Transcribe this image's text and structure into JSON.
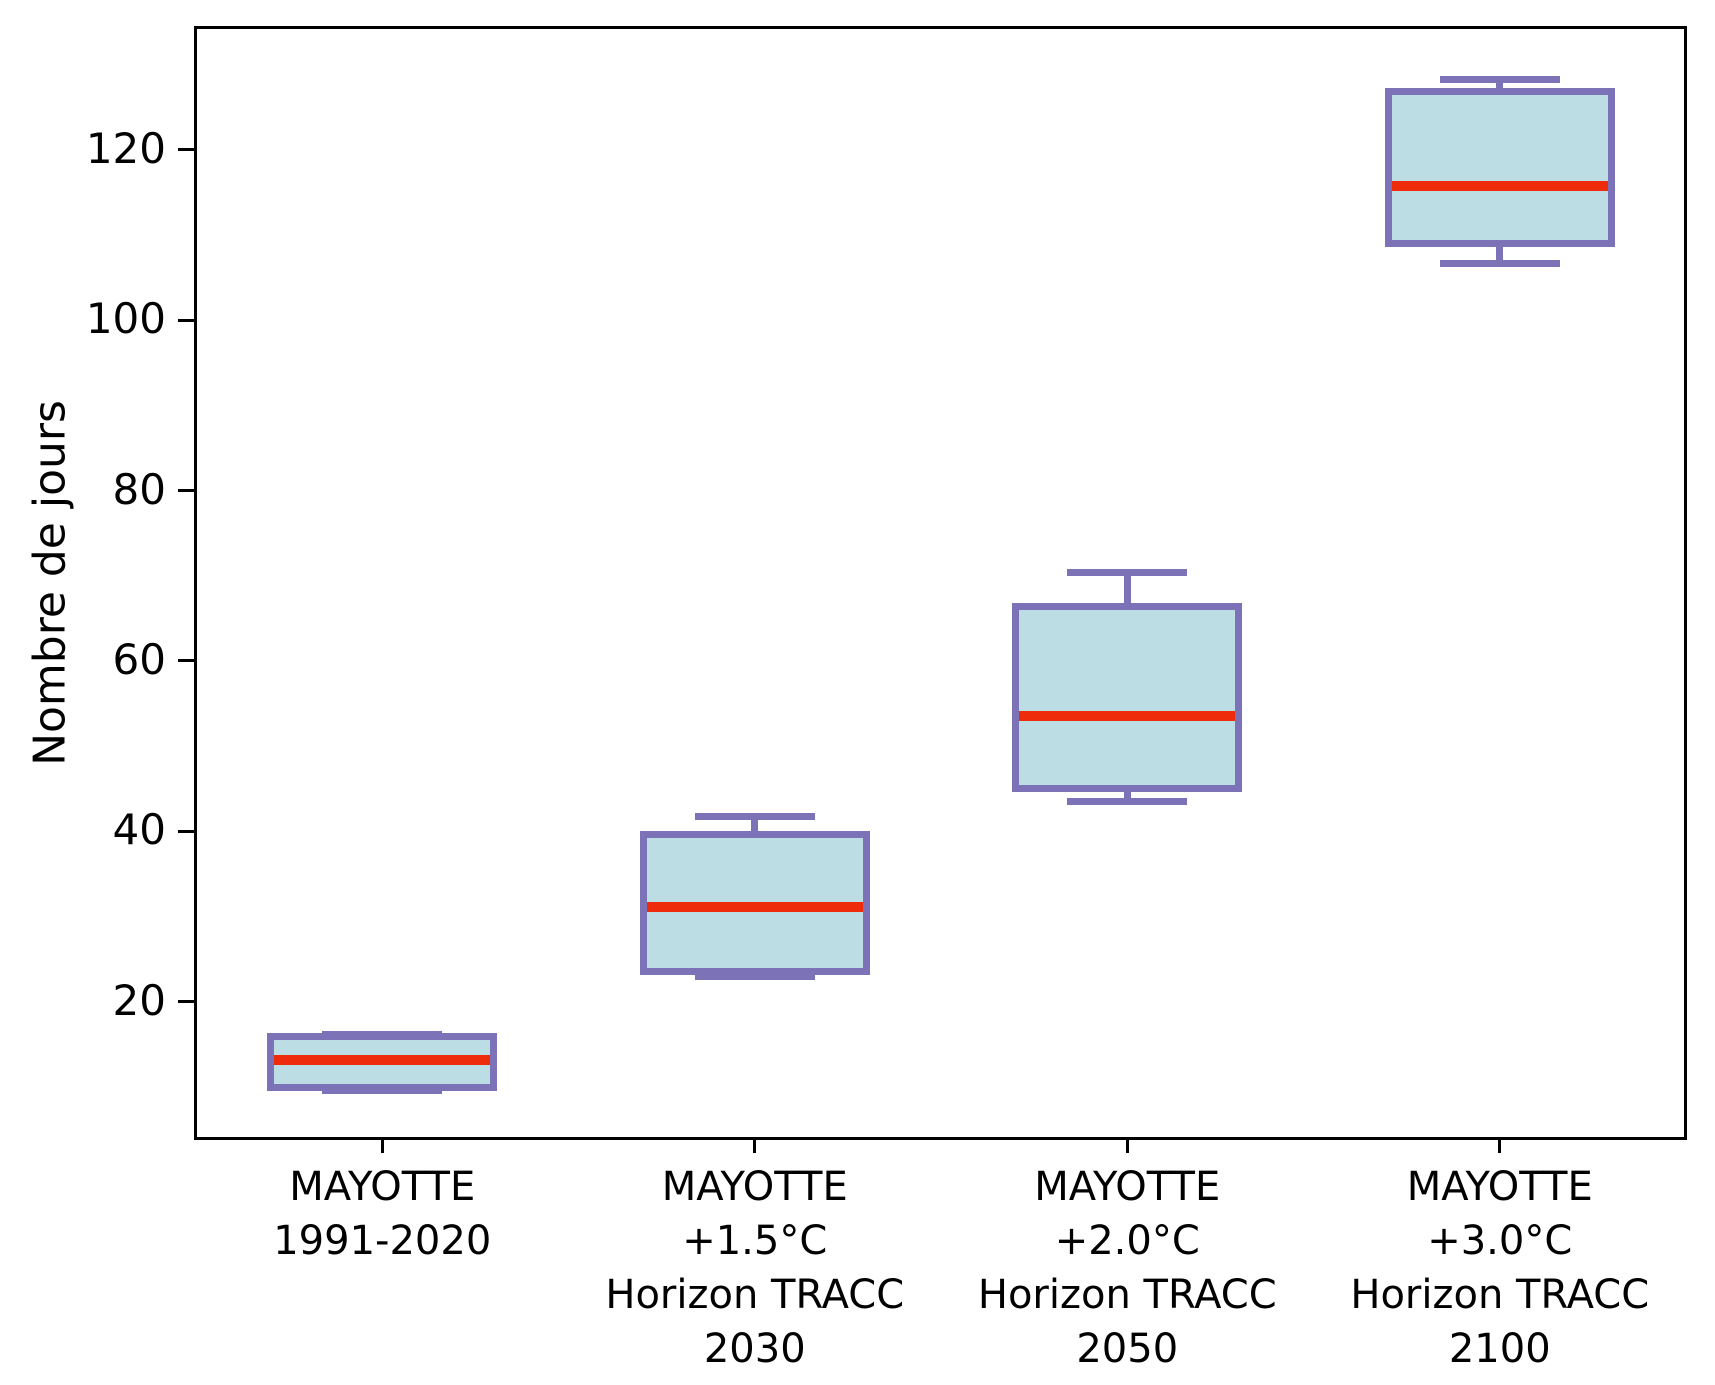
{
  "chart_data": {
    "type": "box",
    "title": "",
    "xlabel": "",
    "ylabel": "Nombre de jours",
    "ylim": [
      4.0,
      134.3
    ],
    "yticks": [
      20,
      40,
      60,
      80,
      100,
      120
    ],
    "grid": false,
    "legend": null,
    "categories": [
      "MAYOTTE\n1991-2020",
      "MAYOTTE\n+1.5°C\nHorizon TRACC\n2030",
      "MAYOTTE\n+2.0°C\nHorizon TRACC\n2050",
      "MAYOTTE\n+3.0°C\nHorizon TRACC\n2100"
    ],
    "boxes": [
      {
        "label": "MAYOTTE 1991-2020",
        "whislo": 9.6,
        "q1": 9.9,
        "med": 13.2,
        "q3": 15.9,
        "whishi": 16.2
      },
      {
        "label": "MAYOTTE +1.5°C Horizon TRACC 2030",
        "whislo": 23.0,
        "q1": 23.6,
        "med": 31.1,
        "q3": 39.6,
        "whishi": 41.7
      },
      {
        "label": "MAYOTTE +2.0°C Horizon TRACC 2050",
        "whislo": 43.5,
        "q1": 45.0,
        "med": 53.5,
        "q3": 66.4,
        "whishi": 70.4
      },
      {
        "label": "MAYOTTE +3.0°C Horizon TRACC 2100",
        "whislo": 106.7,
        "q1": 109.0,
        "med": 115.8,
        "q3": 126.8,
        "whishi": 128.3
      }
    ],
    "colors": {
      "box_fill": "#bcdde3",
      "box_edge": "#7b72b8",
      "median": "#ee2c0c",
      "axis": "#000000",
      "text": "#000000"
    }
  }
}
